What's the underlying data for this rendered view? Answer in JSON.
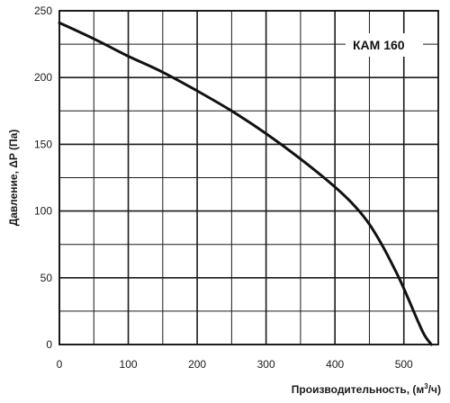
{
  "chart_data": {
    "type": "line",
    "xlabel_main": "Производительность, (м",
    "xlabel_sup": "3",
    "xlabel_end": "/ч)",
    "ylabel": "Давление, ΔP (Па)",
    "xlim": [
      0,
      550
    ],
    "ylim": [
      0,
      250
    ],
    "x_ticks": [
      0,
      100,
      200,
      300,
      400,
      500
    ],
    "y_ticks": [
      0,
      50,
      100,
      150,
      200,
      250
    ],
    "x_minor_step": 50,
    "y_minor_step": 25,
    "grid": true,
    "series": [
      {
        "name": "КАМ 160",
        "color": "#111111",
        "x": [
          0,
          50,
          100,
          150,
          200,
          250,
          300,
          350,
          400,
          430,
          450,
          470,
          490,
          500,
          510,
          520,
          530,
          540
        ],
        "y": [
          241,
          229,
          216,
          204,
          190,
          175,
          158,
          139,
          118,
          103,
          90,
          73,
          53,
          42,
          30,
          18,
          7,
          0
        ]
      }
    ],
    "legend_position": "top-right"
  }
}
